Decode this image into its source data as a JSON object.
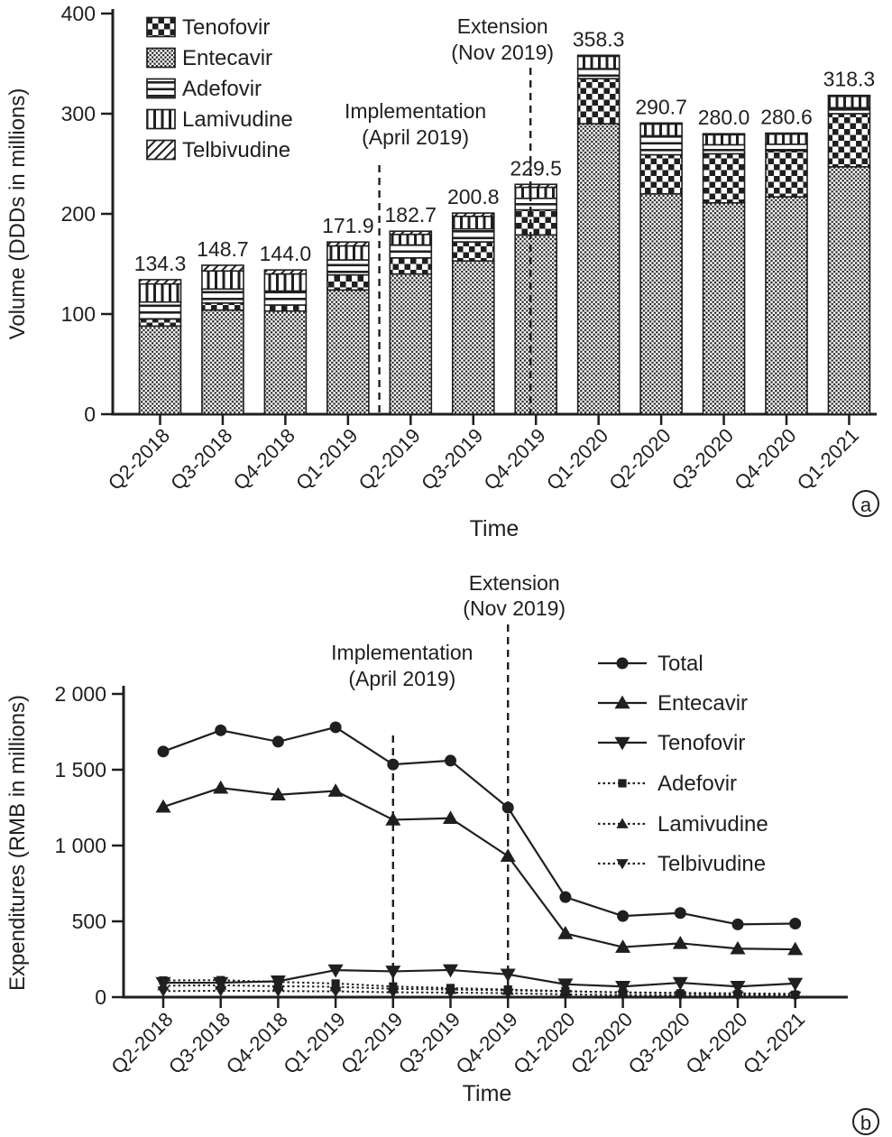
{
  "figure": {
    "background": "#ffffff",
    "ink": "#1f1f1f"
  },
  "chart_data": [
    {
      "id": "volume",
      "type": "bar",
      "stacked": true,
      "panel_letter": "a",
      "xlabel": "Time",
      "ylabel": "Volume (DDDs in millions)",
      "ylim": [
        0,
        400
      ],
      "yticks": [
        0,
        100,
        200,
        300,
        400
      ],
      "ytick_labels": [
        "0",
        "100",
        "200",
        "300",
        "400"
      ],
      "grid": false,
      "legend_position": "top-left-inside",
      "categories": [
        "Q2-2018",
        "Q3-2018",
        "Q4-2018",
        "Q1-2019",
        "Q2-2019",
        "Q3-2019",
        "Q4-2019",
        "Q1-2020",
        "Q2-2020",
        "Q3-2020",
        "Q4-2020",
        "Q1-2021"
      ],
      "stack_order_bottom_up": [
        "Entecavir",
        "Tenofovir",
        "Adefovir",
        "Lamivudine",
        "Telbivudine"
      ],
      "series": [
        {
          "name": "Tenofovir",
          "pattern": "checker",
          "values": [
            7,
            7,
            6,
            15,
            16,
            19,
            25,
            45,
            39,
            49,
            46,
            53
          ]
        },
        {
          "name": "Entecavir",
          "pattern": "dots",
          "values": [
            88,
            104,
            103,
            124,
            140,
            153,
            179,
            290,
            220,
            211,
            217,
            247
          ]
        },
        {
          "name": "Adefovir",
          "pattern": "hlines",
          "values": [
            17,
            14,
            14,
            15,
            13,
            13,
            11.5,
            10,
            19,
            9,
            6.5,
            6
          ]
        },
        {
          "name": "Lamivudine",
          "pattern": "vlines",
          "values": [
            18,
            18,
            17,
            14,
            10.5,
            12.5,
            11,
            12.3,
            11.7,
            10,
            10.1,
            11.3
          ]
        },
        {
          "name": "Telbivudine",
          "pattern": "diag",
          "values": [
            4.3,
            5.7,
            4,
            3.9,
            3.2,
            3.3,
            3,
            1,
            1,
            1,
            1,
            1
          ]
        }
      ],
      "totals": [
        134.3,
        148.7,
        144.0,
        171.9,
        182.7,
        200.8,
        229.5,
        358.3,
        290.7,
        280.0,
        280.6,
        318.3
      ],
      "total_labels": [
        "134.3",
        "148.7",
        "144.0",
        "171.9",
        "182.7",
        "200.8",
        "229.5",
        "358.3",
        "290.7",
        "280.0",
        "280.6",
        "318.3"
      ],
      "annotations": [
        {
          "lines": [
            "Implementation",
            "(April 2019)"
          ],
          "between": [
            "Q1-2019",
            "Q2-2019"
          ],
          "style": "dashed-vertical"
        },
        {
          "lines": [
            "Extension",
            "(Nov 2019)"
          ],
          "at": "Q4-2019",
          "style": "dashed-vertical"
        }
      ]
    },
    {
      "id": "expenditure",
      "type": "line",
      "panel_letter": "b",
      "xlabel": "Time",
      "ylabel": "Expenditures (RMB in millions)",
      "ylim": [
        0,
        2000
      ],
      "yticks": [
        0,
        500,
        1000,
        1500,
        2000
      ],
      "ytick_labels": [
        "0",
        "500",
        "1 000",
        "1 500",
        "2 000"
      ],
      "grid": false,
      "legend_position": "right-inside",
      "categories": [
        "Q2-2018",
        "Q3-2018",
        "Q4-2018",
        "Q1-2019",
        "Q2-2019",
        "Q3-2019",
        "Q4-2019",
        "Q1-2020",
        "Q2-2020",
        "Q3-2020",
        "Q4-2020",
        "Q1-2021"
      ],
      "series": [
        {
          "name": "Total",
          "marker": "circle",
          "line": "solid",
          "values": [
            1620,
            1760,
            1685,
            1780,
            1535,
            1560,
            1250,
            660,
            535,
            555,
            480,
            485
          ]
        },
        {
          "name": "Entecavir",
          "marker": "triangle-up",
          "line": "solid",
          "values": [
            1255,
            1380,
            1335,
            1360,
            1170,
            1180,
            930,
            420,
            330,
            355,
            320,
            315
          ]
        },
        {
          "name": "Tenofovir",
          "marker": "triangle-down",
          "line": "solid",
          "values": [
            95,
            95,
            105,
            178,
            170,
            179,
            150,
            85,
            70,
            95,
            70,
            90
          ]
        },
        {
          "name": "Adefovir",
          "marker": "square",
          "line": "dotted",
          "values": [
            110,
            112,
            100,
            90,
            70,
            60,
            50,
            40,
            30,
            25,
            20,
            16
          ]
        },
        {
          "name": "Lamivudine",
          "marker": "triangle-up",
          "line": "dotted",
          "values": [
            75,
            78,
            72,
            68,
            55,
            50,
            45,
            38,
            32,
            28,
            25,
            22
          ]
        },
        {
          "name": "Telbivudine",
          "marker": "triangle-down",
          "line": "dotted",
          "values": [
            40,
            42,
            40,
            38,
            32,
            30,
            26,
            18,
            14,
            11,
            9,
            7
          ]
        }
      ],
      "annotations": [
        {
          "lines": [
            "Implementation",
            "(April 2019)"
          ],
          "at": "Q2-2019",
          "style": "dashed-vertical"
        },
        {
          "lines": [
            "Extension",
            "(Nov 2019)"
          ],
          "at": "Q4-2019",
          "style": "dashed-vertical"
        }
      ]
    }
  ]
}
